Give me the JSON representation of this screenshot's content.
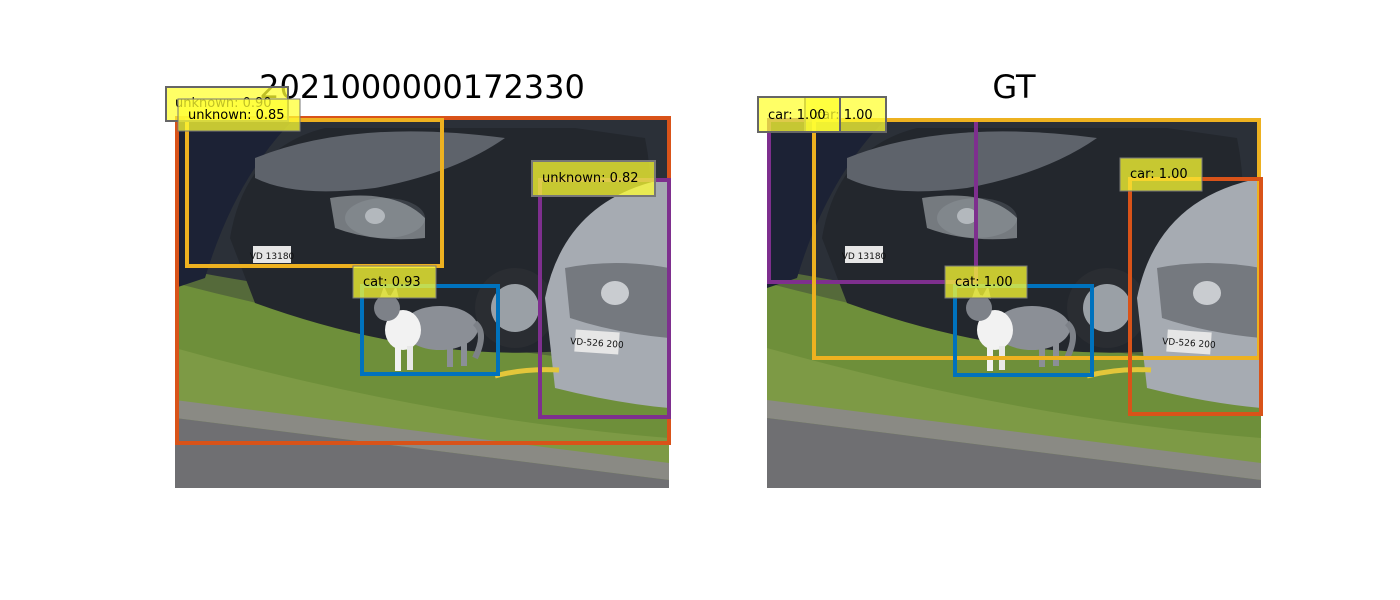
{
  "panels": {
    "left": {
      "title": "2021000000172330",
      "boxes": [
        {
          "label": "unknown: 0.90",
          "color": "#d95319"
        },
        {
          "label": "unknown: 0.85",
          "color": "#edb120"
        },
        {
          "label": "unknown: 0.82",
          "color": "#7e2f8e"
        },
        {
          "label": "cat: 0.93",
          "color": "#0072bd"
        }
      ]
    },
    "right": {
      "title": "GT",
      "boxes": [
        {
          "label": "car: 1.00",
          "color": "#7e2f8e"
        },
        {
          "label": "car: 1.00",
          "color": "#edb120"
        },
        {
          "label": "car: 1.00",
          "color": "#d95319"
        },
        {
          "label": "cat: 1.00",
          "color": "#0072bd"
        }
      ]
    }
  },
  "plates": {
    "plate_a": "VD 13180",
    "plate_b": "VD-526 200"
  },
  "label_bg": "#ffff33"
}
